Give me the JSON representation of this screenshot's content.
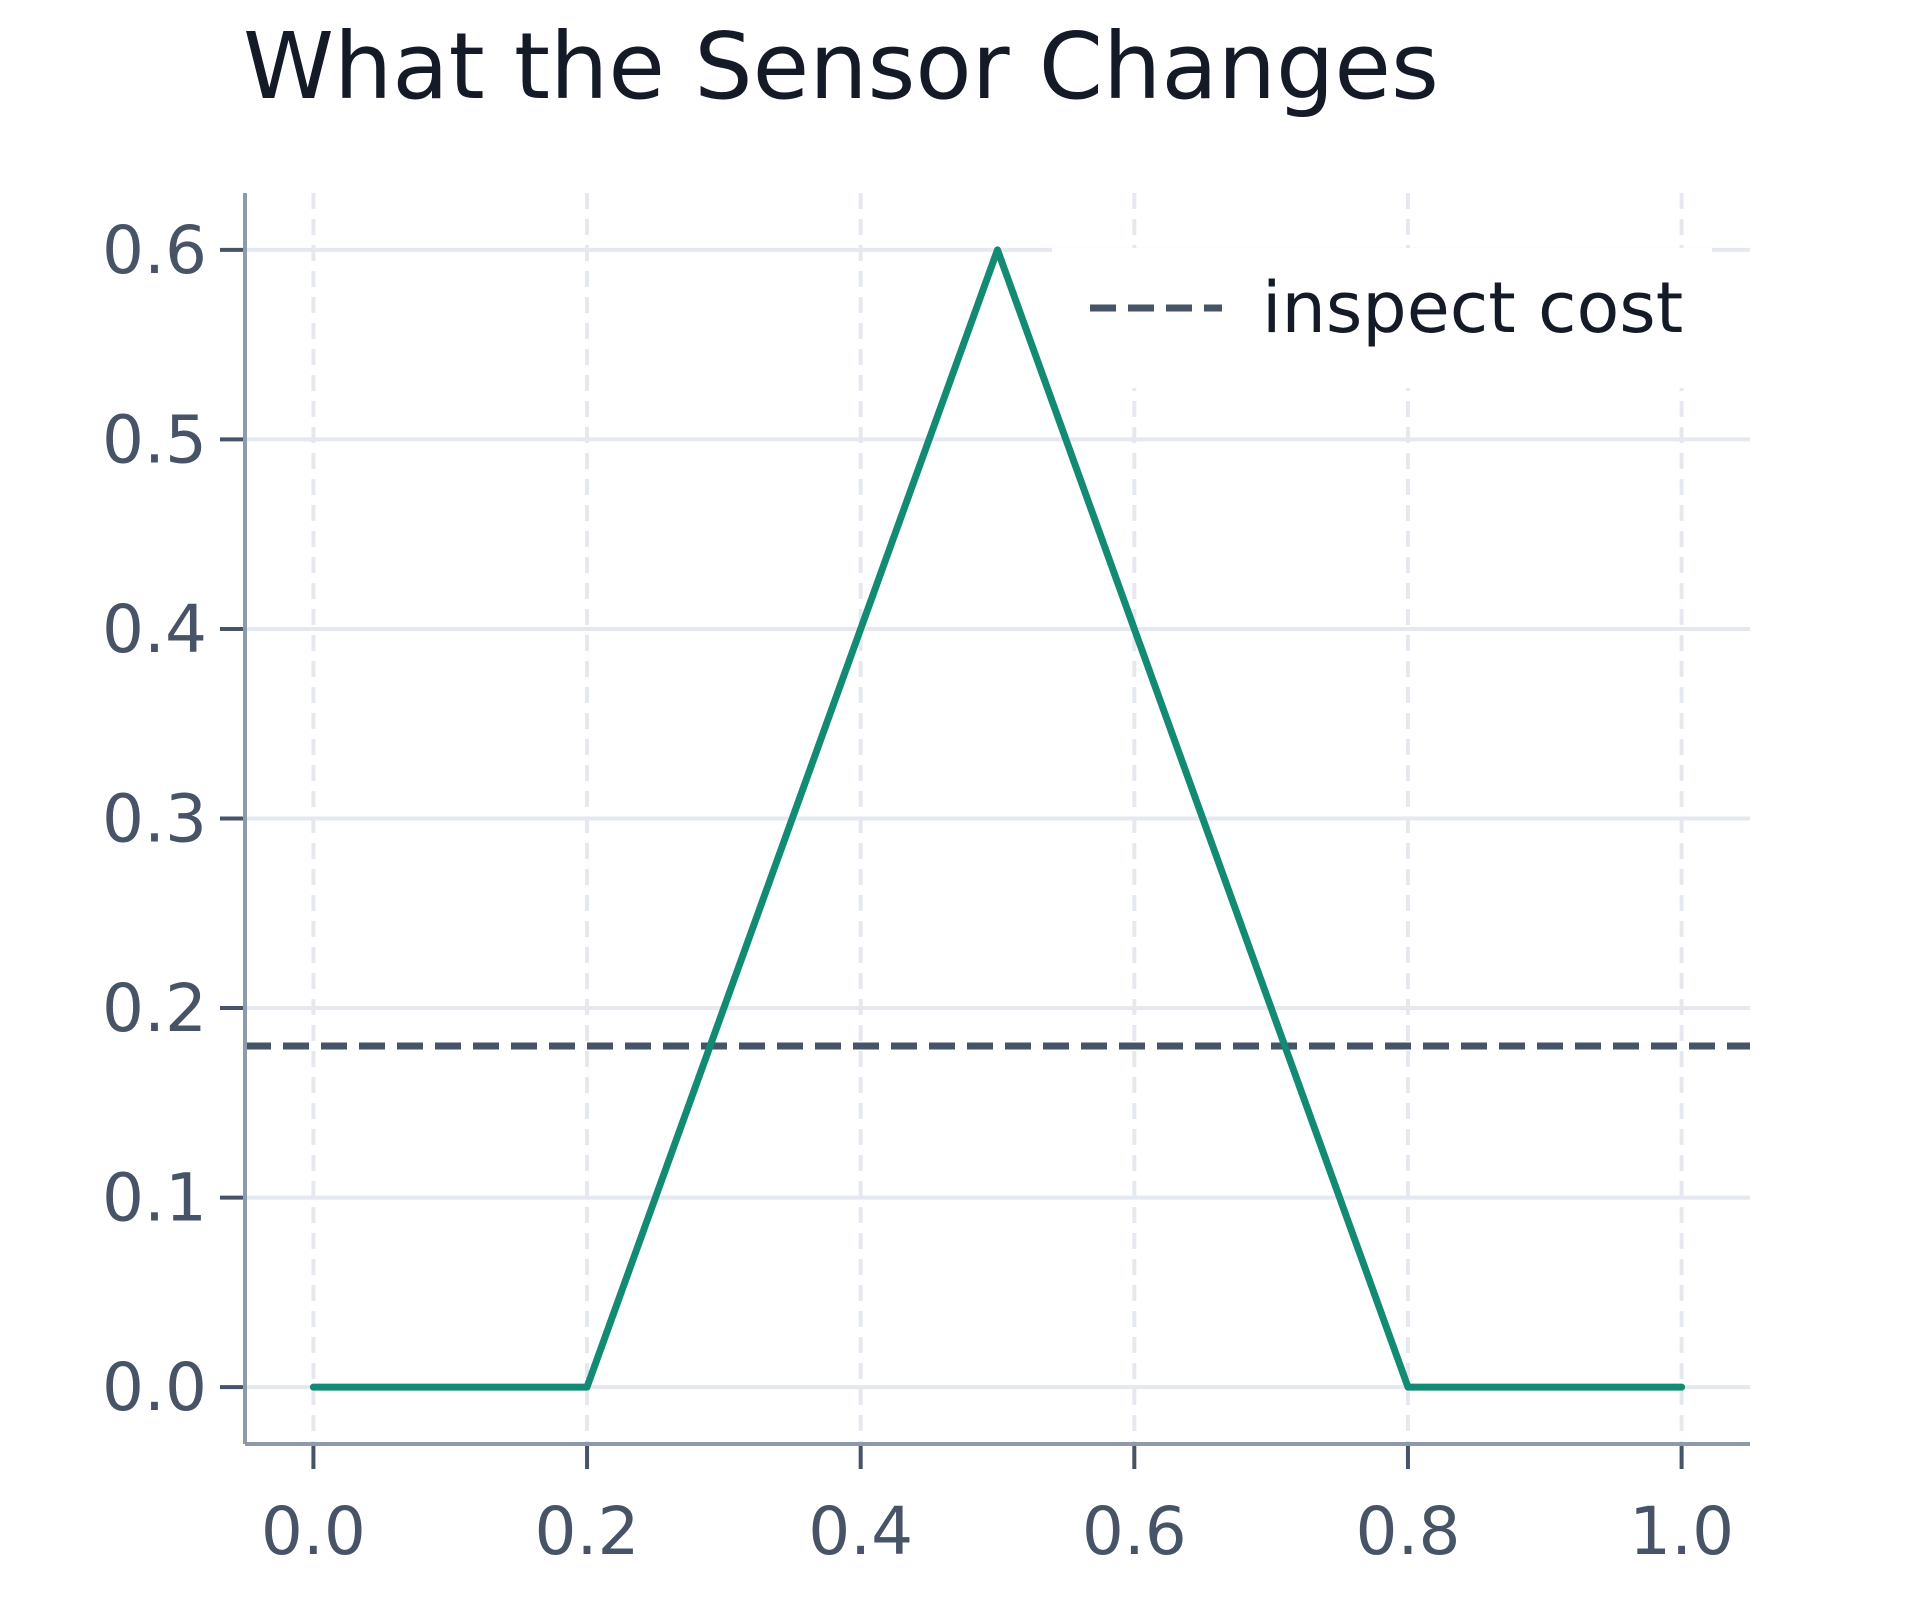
{
  "chart_data": {
    "type": "line",
    "title": "What the Sensor Changes",
    "xlabel": "",
    "ylabel": "",
    "xlim": [
      -0.05,
      1.05
    ],
    "ylim": [
      -0.03,
      0.63
    ],
    "x_ticks": [
      "0.0",
      "0.2",
      "0.4",
      "0.6",
      "0.8",
      "1.0"
    ],
    "y_ticks": [
      "0.0",
      "0.1",
      "0.2",
      "0.3",
      "0.4",
      "0.5",
      "0.6"
    ],
    "grid": true,
    "legend_position": "top-right",
    "series": [
      {
        "color": "#138a73",
        "x": [
          0.0,
          0.2,
          0.5,
          0.8,
          1.0
        ],
        "y": [
          0.0,
          0.0,
          0.6,
          0.0,
          0.0
        ]
      }
    ],
    "reference_lines": [
      {
        "name": "inspect cost",
        "y": 0.18,
        "style": "dashed",
        "color": "#475366"
      }
    ]
  }
}
